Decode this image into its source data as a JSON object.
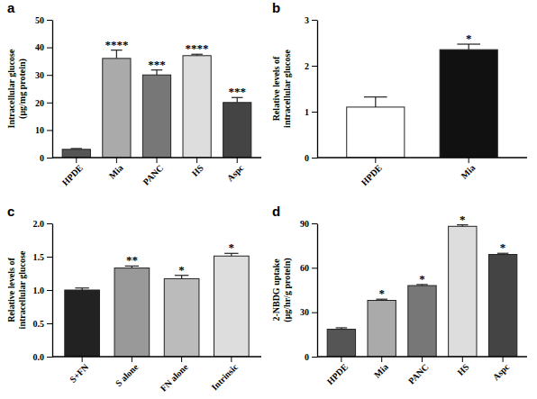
{
  "chart_data": [
    {
      "type": "bar",
      "title": "a",
      "y_label": [
        "Intracellular glucose",
        "(μg/mg protein)"
      ],
      "categories": [
        "HPDE",
        "Mia",
        "PANC",
        "HS",
        "Aspc"
      ],
      "values": [
        3,
        36,
        30,
        37,
        20
      ],
      "errors": [
        0.3,
        3,
        1.8,
        0.5,
        1.8
      ],
      "annotations": [
        null,
        "****",
        "***",
        "****",
        "***"
      ],
      "colors": [
        "#555555",
        "#aaaaaa",
        "#777777",
        "#dddddd",
        "#444444"
      ],
      "ylim": [
        0,
        50
      ],
      "yticks": [
        0,
        10,
        20,
        30,
        40,
        50
      ]
    },
    {
      "type": "bar",
      "title": "b",
      "y_label": [
        "Relative levels of",
        "intracellular glucose"
      ],
      "categories": [
        "HPDE",
        "Mia"
      ],
      "values": [
        1.1,
        2.35
      ],
      "errors": [
        0.22,
        0.12
      ],
      "annotations": [
        null,
        "*"
      ],
      "colors": [
        "#ffffff",
        "#111111"
      ],
      "ylim": [
        0,
        3
      ],
      "yticks": [
        0,
        1,
        2,
        3
      ]
    },
    {
      "type": "bar",
      "title": "c",
      "y_label": [
        "Relative levels of",
        "intracellular glucose"
      ],
      "categories": [
        "S+FN",
        "S alone",
        "FN alone",
        "Intrinsic"
      ],
      "values": [
        1.0,
        1.33,
        1.17,
        1.51
      ],
      "errors": [
        0.03,
        0.03,
        0.05,
        0.04
      ],
      "annotations": [
        null,
        "**",
        "*",
        "*"
      ],
      "colors": [
        "#222222",
        "#999999",
        "#bbbbbb",
        "#dddddd"
      ],
      "ylim": [
        0,
        2
      ],
      "yticks": [
        {
          "value": 0,
          "label": "0.0"
        },
        {
          "value": 0.5,
          "label": "0.5"
        },
        {
          "value": 1,
          "label": "1.0"
        },
        {
          "value": 1.5,
          "label": "1.5"
        },
        {
          "value": 2,
          "label": "2.0"
        }
      ]
    },
    {
      "type": "bar",
      "title": "d",
      "y_label": [
        "2-NBDG uptake",
        "(μg/hr/g protein)"
      ],
      "categories": [
        "HPDE",
        "Mia",
        "PANC",
        "HS",
        "Aspc"
      ],
      "values": [
        18.5,
        38,
        48,
        88,
        69
      ],
      "errors": [
        1,
        0.8,
        0.7,
        1,
        0.8
      ],
      "annotations": [
        null,
        "*",
        "*",
        "*",
        "*"
      ],
      "colors": [
        "#555555",
        "#aaaaaa",
        "#777777",
        "#dddddd",
        "#444444"
      ],
      "ylim": [
        0,
        90
      ],
      "yticks": [
        0,
        30,
        60,
        90
      ]
    }
  ]
}
